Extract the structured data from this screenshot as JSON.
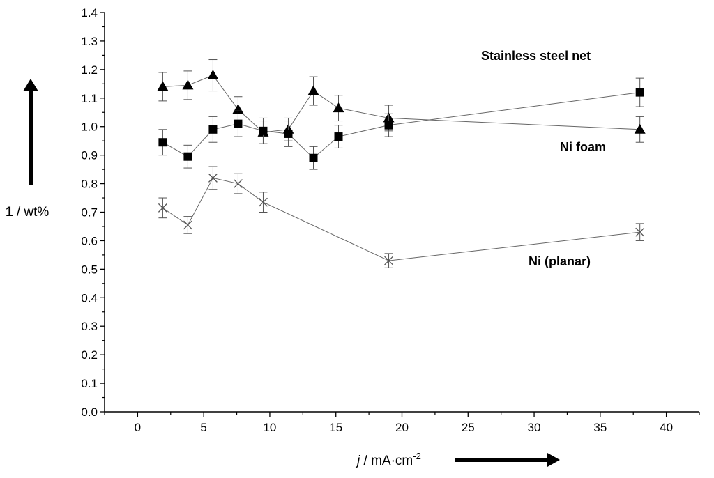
{
  "chart_data": {
    "type": "scatter",
    "xlim": [
      -2.5,
      42.5
    ],
    "ylim": [
      0.0,
      1.4
    ],
    "x_ticks": [
      0,
      5,
      10,
      15,
      20,
      25,
      30,
      35,
      40
    ],
    "y_ticks": [
      0.0,
      0.1,
      0.2,
      0.3,
      0.4,
      0.5,
      0.6,
      0.7,
      0.8,
      0.9,
      1.0,
      1.1,
      1.2,
      1.3,
      1.4
    ],
    "x_tick_labels": [
      "0",
      "5",
      "10",
      "15",
      "20",
      "25",
      "30",
      "35",
      "40"
    ],
    "y_tick_labels": [
      "0.0",
      "0.1",
      "0.2",
      "0.3",
      "0.4",
      "0.5",
      "0.6",
      "0.7",
      "0.8",
      "0.9",
      "1.0",
      "1.1",
      "1.2",
      "1.3",
      "1.4"
    ],
    "ylabel": {
      "bold": "1",
      "rest": " / wt%"
    },
    "xlabel": {
      "italic": "j",
      "rest": " / mA·cm",
      "sup": "-2"
    },
    "series": [
      {
        "name": "Stainless steel net",
        "marker": "triangle",
        "color": "#000000",
        "x": [
          1.9,
          3.8,
          5.7,
          7.6,
          9.5,
          11.4,
          13.3,
          15.2,
          19.0,
          38.0
        ],
        "y": [
          1.14,
          1.145,
          1.18,
          1.06,
          0.98,
          0.99,
          1.125,
          1.065,
          1.03,
          0.99
        ],
        "err": [
          0.05,
          0.05,
          0.055,
          0.045,
          0.04,
          0.04,
          0.05,
          0.045,
          0.045,
          0.045
        ]
      },
      {
        "name": "Ni foam",
        "marker": "square",
        "color": "#000000",
        "x": [
          1.9,
          3.8,
          5.7,
          7.6,
          9.5,
          11.4,
          13.3,
          15.2,
          19.0,
          38.0
        ],
        "y": [
          0.945,
          0.895,
          0.99,
          1.01,
          0.985,
          0.975,
          0.89,
          0.965,
          1.005,
          1.12
        ],
        "err": [
          0.045,
          0.04,
          0.045,
          0.045,
          0.045,
          0.045,
          0.04,
          0.04,
          0.04,
          0.05
        ]
      },
      {
        "name": "Ni (planar)",
        "marker": "x",
        "color": "#555555",
        "x": [
          1.9,
          3.8,
          5.7,
          7.6,
          9.5,
          19.0,
          38.0
        ],
        "y": [
          0.715,
          0.655,
          0.82,
          0.8,
          0.735,
          0.53,
          0.63
        ],
        "err": [
          0.035,
          0.03,
          0.04,
          0.035,
          0.035,
          0.025,
          0.03
        ]
      }
    ]
  }
}
